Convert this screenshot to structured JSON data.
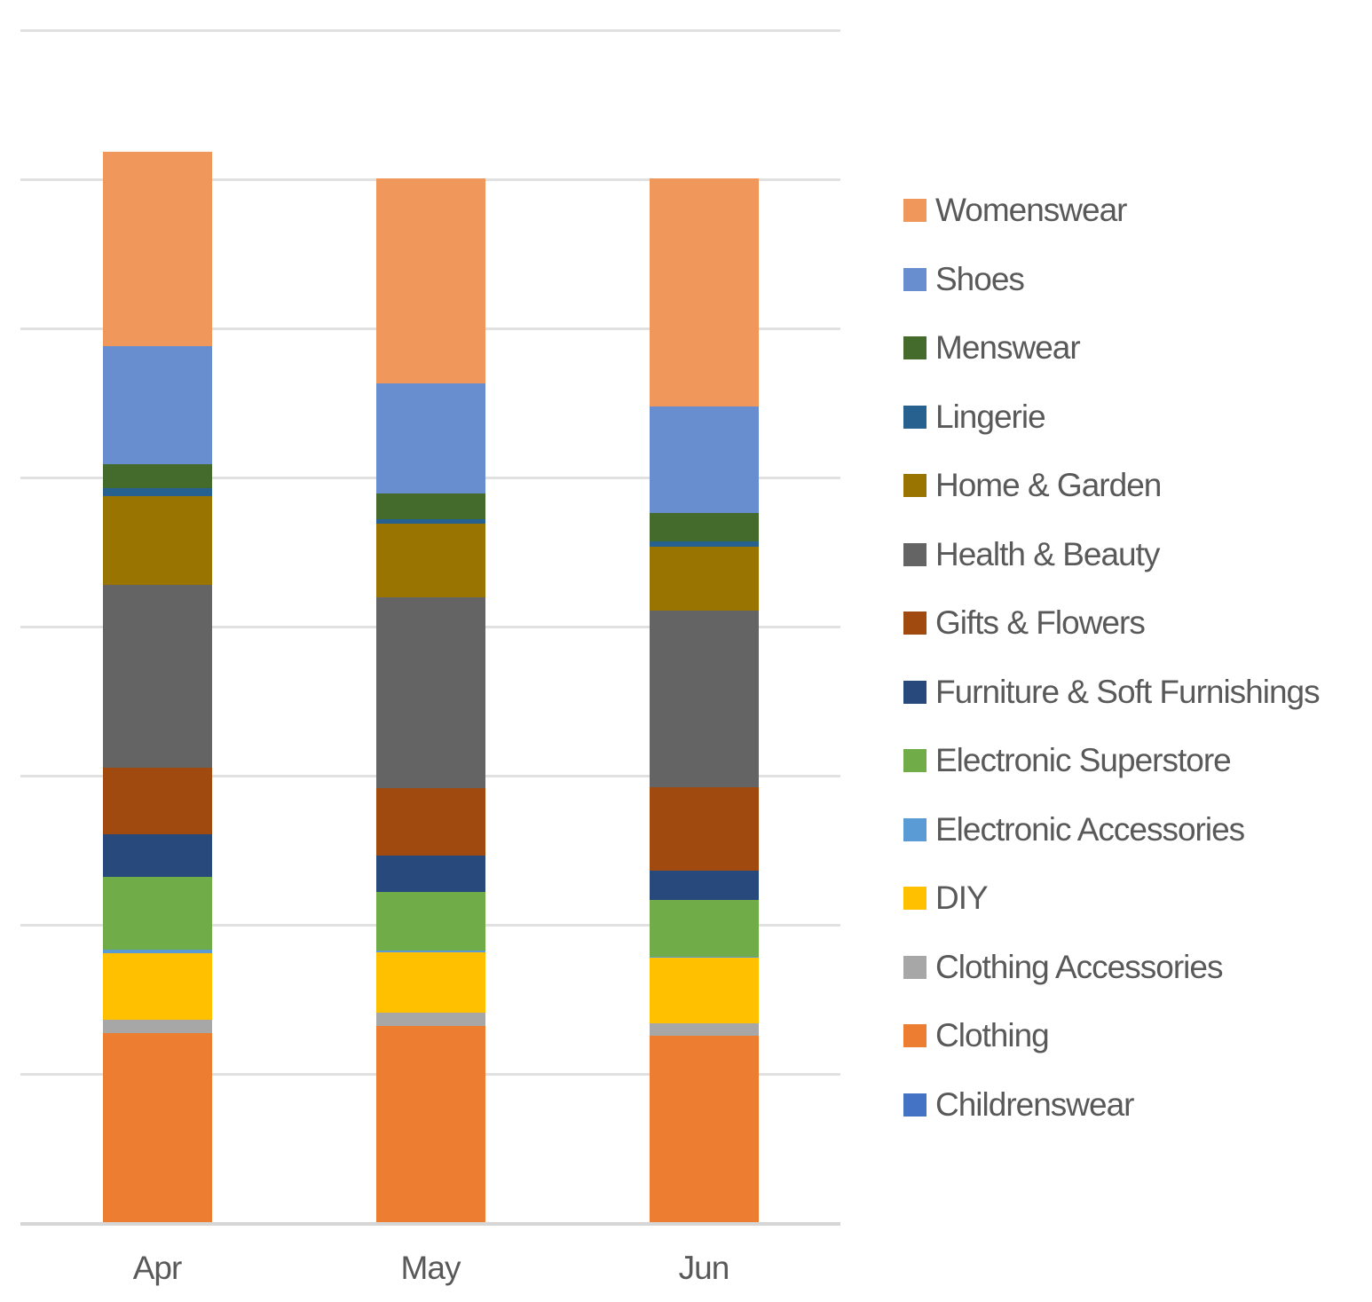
{
  "chart_data": {
    "type": "bar",
    "stacked": true,
    "stack_order": "bottom_to_top",
    "title": "",
    "xlabel": "",
    "ylabel": "",
    "categories": [
      "Apr",
      "May",
      "Jun"
    ],
    "series": [
      {
        "name": "Childrenswear",
        "color": "#4472C4",
        "values": [
          0,
          0,
          0
        ]
      },
      {
        "name": "Clothing",
        "color": "#ED7D31",
        "values": [
          638,
          662,
          627
        ]
      },
      {
        "name": "Clothing Accessories",
        "color": "#A7A7A7",
        "values": [
          43,
          42,
          43
        ]
      },
      {
        "name": "DIY",
        "color": "#FFC000",
        "values": [
          225,
          205,
          219
        ]
      },
      {
        "name": "Electronic Accessories",
        "color": "#5B9BD5",
        "values": [
          11,
          5,
          4
        ]
      },
      {
        "name": "Electronic Superstore",
        "color": "#70AC47",
        "values": [
          243,
          197,
          191
        ]
      },
      {
        "name": "Furniture & Soft Furnishings",
        "color": "#28497B",
        "values": [
          143,
          121,
          97
        ]
      },
      {
        "name": "Gifts & Flowers",
        "color": "#A04A10",
        "values": [
          225,
          225,
          281
        ]
      },
      {
        "name": "Health & Beauty",
        "color": "#646464",
        "values": [
          612,
          642,
          593
        ]
      },
      {
        "name": "Home & Garden",
        "color": "#9A7400",
        "values": [
          297,
          246,
          214
        ]
      },
      {
        "name": "Lingerie",
        "color": "#27618F",
        "values": [
          26,
          16,
          17
        ]
      },
      {
        "name": "Menswear",
        "color": "#446A2C",
        "values": [
          82,
          85,
          94
        ]
      },
      {
        "name": "Shoes",
        "color": "#698ED0",
        "values": [
          396,
          370,
          359
        ]
      },
      {
        "name": "Womenswear",
        "color": "#F0985C",
        "values": [
          650,
          687,
          764
        ]
      }
    ],
    "legend_position": "right",
    "legend_order_top_to_bottom": [
      "Womenswear",
      "Shoes",
      "Menswear",
      "Lingerie",
      "Home & Garden",
      "Health & Beauty",
      "Gifts & Flowers",
      "Furniture & Soft Furnishings",
      "Electronic Superstore",
      "Electronic Accessories",
      "DIY",
      "Clothing Accessories",
      "Clothing",
      "Childrenswear"
    ],
    "ylim": [
      0,
      4000
    ],
    "gridline_interval": 500,
    "grid": true,
    "y_tick_labels_visible": false,
    "value_scale_note": "No y-axis tick labels are visible in the chart; series values are estimated assuming one gridline interval = 500 units."
  },
  "colors": {
    "text": "#595959",
    "gridline": "#E1E1E1",
    "axis_line": "#D6D6D6",
    "background": "#FFFFFF"
  }
}
